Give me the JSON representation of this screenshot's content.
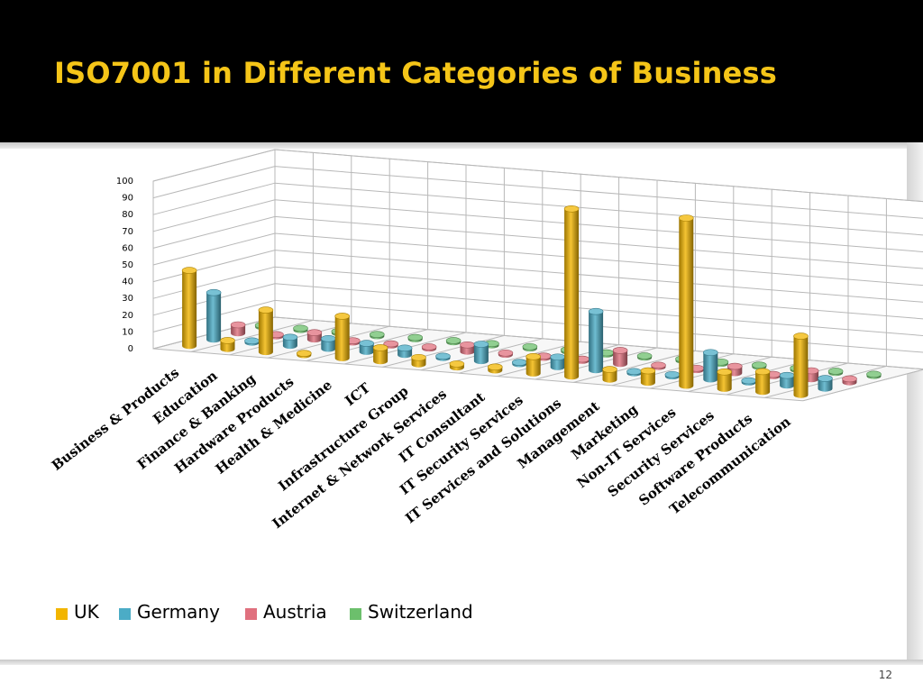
{
  "slide": {
    "title": "ISO7001 in Different Categories of Business",
    "title_color": "#f5c518",
    "slide_number": "12"
  },
  "chart_data": {
    "type": "bar",
    "style": "3d-cylinder",
    "title": "",
    "xlabel": "",
    "ylabel": "",
    "ylim": [
      0,
      100
    ],
    "yticks": [
      0,
      10,
      20,
      30,
      40,
      50,
      60,
      70,
      80,
      90,
      100
    ],
    "grid": true,
    "legend_position": "bottom",
    "categories": [
      "Business & Products",
      "Education",
      "Finance & Banking",
      "Hardware Products",
      "Health & Medicine",
      "ICT",
      "Infrastructure Group",
      "Internet & Network Services",
      "IT Consultant",
      "IT Security Services",
      "IT Services and Solutions",
      "Management",
      "Marketing",
      "Non-IT Services",
      "Security Services",
      "Software Products",
      "Telecommunication"
    ],
    "series": [
      {
        "name": "UK",
        "color": "#f2b500",
        "values": [
          45,
          5,
          25,
          1,
          25,
          8,
          4,
          2,
          2,
          10,
          100,
          6,
          7,
          100,
          10,
          12,
          35
        ]
      },
      {
        "name": "Germany",
        "color": "#4bacc6",
        "values": [
          28,
          1,
          5,
          6,
          5,
          4,
          1,
          10,
          1,
          6,
          35,
          1,
          1,
          16,
          1,
          6,
          6
        ]
      },
      {
        "name": "Austria",
        "color": "#e0707e",
        "values": [
          5,
          1,
          4,
          1,
          1,
          1,
          4,
          1,
          1,
          1,
          8,
          1,
          1,
          4,
          1,
          5,
          2
        ]
      },
      {
        "name": "Switzerland",
        "color": "#6cbf6c",
        "values": [
          1,
          1,
          1,
          1,
          1,
          1,
          1,
          1,
          1,
          1,
          1,
          1,
          1,
          1,
          1,
          1,
          1
        ]
      }
    ]
  }
}
